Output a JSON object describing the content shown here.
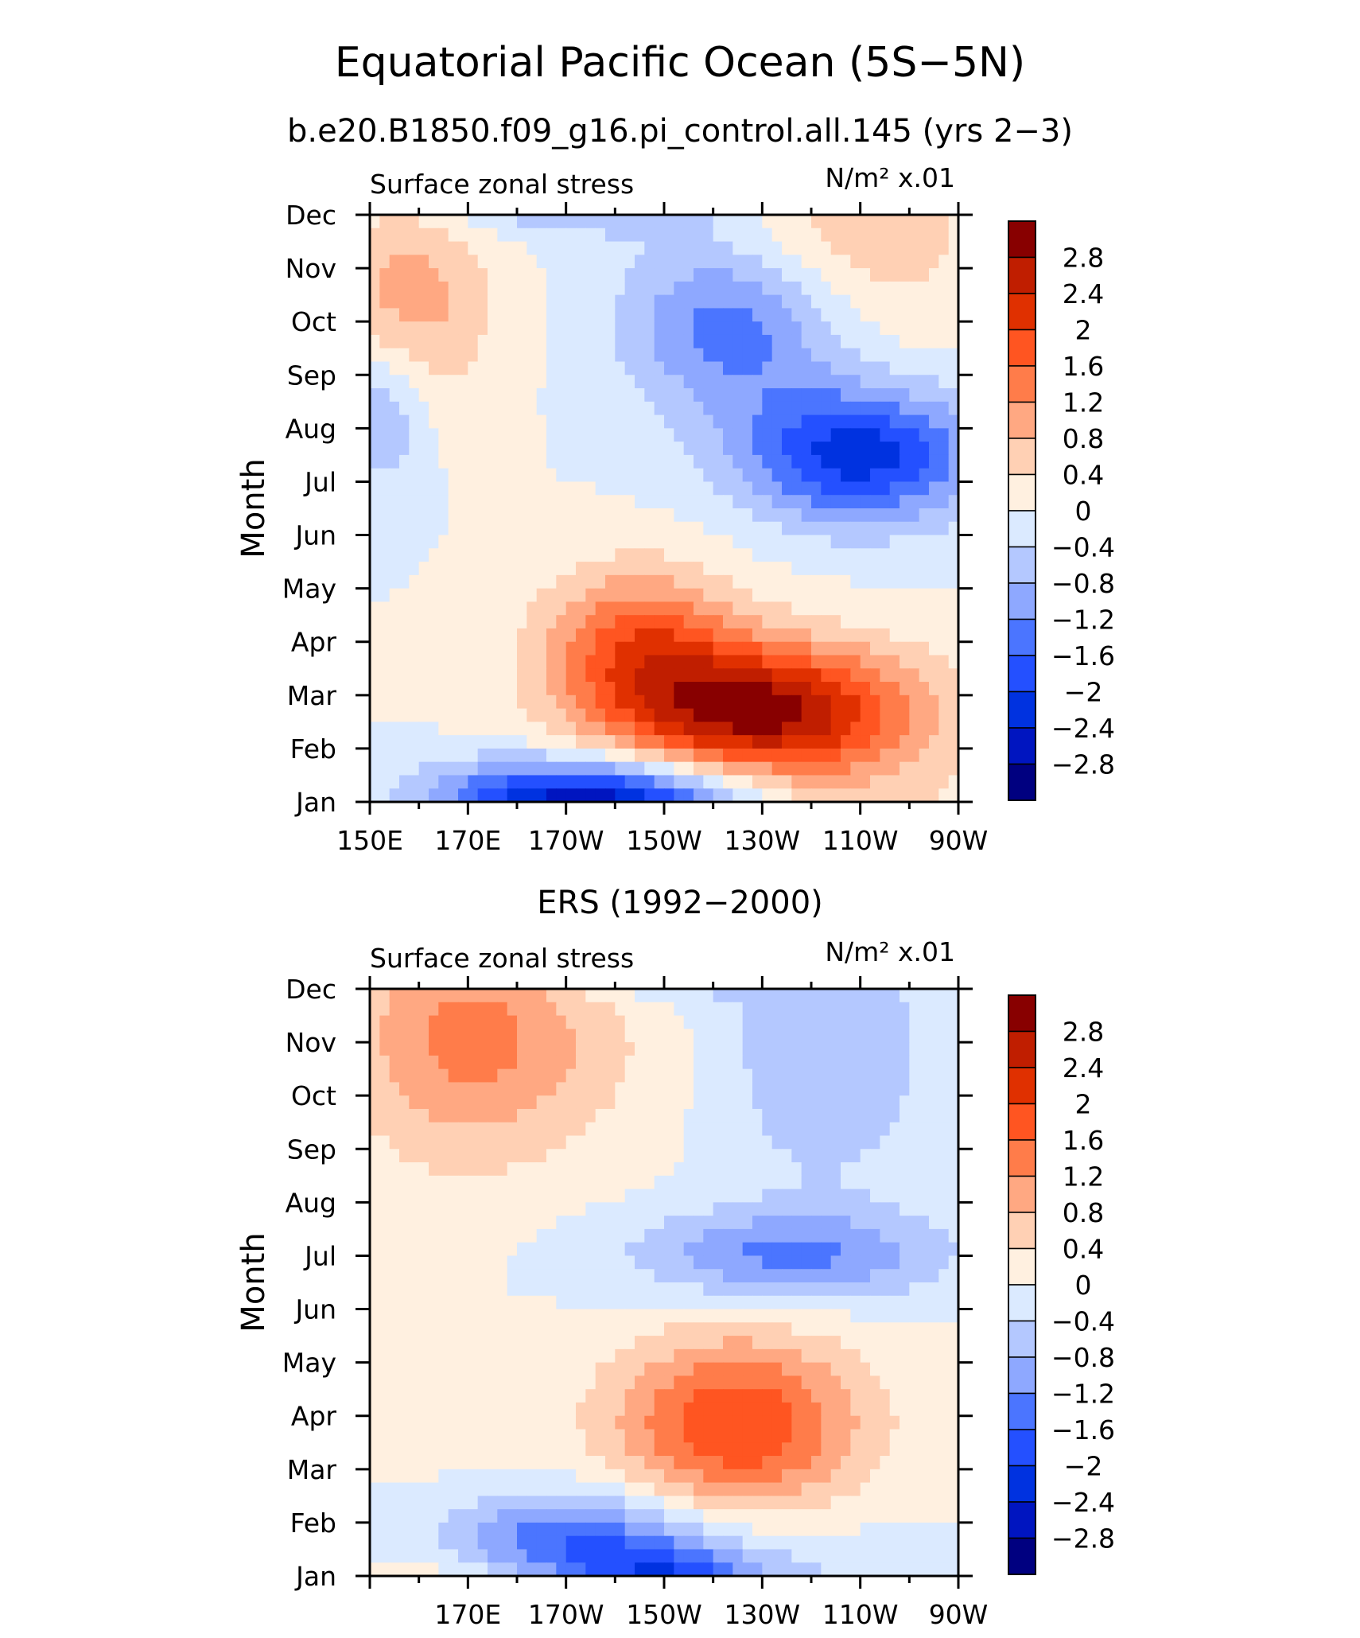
{
  "title": "Equatorial Pacific Ocean (5S−5N)",
  "chart_data": [
    {
      "type": "heatmap",
      "title": "b.e20.B1850.f09_g16.pi_control.all.145 (yrs 2−3)",
      "left_label": "Surface zonal stress",
      "units_label": "N/m² x.01",
      "xlabel": "",
      "ylabel": "Month",
      "x_range": [
        150,
        270
      ],
      "x_ticks": [
        {
          "value": 150,
          "label": "150E"
        },
        {
          "value": 170,
          "label": "170E"
        },
        {
          "value": 190,
          "label": "170W"
        },
        {
          "value": 210,
          "label": "150W"
        },
        {
          "value": 230,
          "label": "130W"
        },
        {
          "value": 250,
          "label": "110W"
        },
        {
          "value": 270,
          "label": "90W"
        }
      ],
      "y_ticks": [
        "Jan",
        "Feb",
        "Mar",
        "Apr",
        "May",
        "Jun",
        "Jul",
        "Aug",
        "Sep",
        "Oct",
        "Nov",
        "Dec"
      ],
      "levels": [
        -2.8,
        -2.4,
        -2,
        -1.6,
        -1.2,
        -0.8,
        -0.4,
        0,
        0.4,
        0.8,
        1.2,
        1.6,
        2,
        2.4,
        2.8
      ],
      "colorbar_labels": [
        "2.8",
        "2.4",
        "2",
        "1.6",
        "1.2",
        "0.8",
        "0.4",
        "0",
        "−0.4",
        "−0.8",
        "−1.2",
        "−1.6",
        "−2",
        "−2.4",
        "−2.8"
      ],
      "colors": [
        "#000080",
        "#0015c0",
        "#0032e0",
        "#2450ff",
        "#4b75ff",
        "#8ea8ff",
        "#b4c8ff",
        "#dbeaff",
        "#fff0e0",
        "#ffd0b4",
        "#ffa882",
        "#ff7c4a",
        "#ff5521",
        "#e03000",
        "#c01e00",
        "#880000"
      ],
      "features": [
        {
          "lon": 230,
          "month": 1.7,
          "value": 2.9,
          "sx": 22,
          "sy": 0.9
        },
        {
          "lon": 205,
          "month": 3.0,
          "value": 1.6,
          "sx": 14,
          "sy": 1.0
        },
        {
          "lon": 250,
          "month": 6.5,
          "value": -2.2,
          "sx": 17,
          "sy": 0.9
        },
        {
          "lon": 225,
          "month": 9.0,
          "value": -1.6,
          "sx": 16,
          "sy": 1.2
        },
        {
          "lon": 195,
          "month": 11.8,
          "value": -2.0,
          "sx": 22,
          "sy": 0.6
        },
        {
          "lon": 158,
          "month": 9.4,
          "value": 1.0,
          "sx": 12,
          "sy": 1.4
        },
        {
          "lon": 245,
          "month": 10.5,
          "value": 0.8,
          "sx": 20,
          "sy": 1.5
        },
        {
          "lon": 153,
          "month": 7.3,
          "value": -0.9,
          "sx": 6,
          "sy": 1.0
        },
        {
          "lon": 195,
          "month": 0.2,
          "value": -1.0,
          "sx": 25,
          "sy": 0.5
        }
      ]
    },
    {
      "type": "heatmap",
      "title": "ERS (1992−2000)",
      "left_label": "Surface zonal stress",
      "units_label": "N/m² x.01",
      "xlabel": "",
      "ylabel": "Month",
      "x_range": [
        150,
        270
      ],
      "x_ticks": [
        {
          "value": 170,
          "label": "170E"
        },
        {
          "value": 190,
          "label": "170W"
        },
        {
          "value": 210,
          "label": "150W"
        },
        {
          "value": 230,
          "label": "130W"
        },
        {
          "value": 250,
          "label": "110W"
        },
        {
          "value": 270,
          "label": "90W"
        }
      ],
      "y_ticks": [
        "Jan",
        "Feb",
        "Mar",
        "Apr",
        "May",
        "Jun",
        "Jul",
        "Aug",
        "Sep",
        "Oct",
        "Nov",
        "Dec"
      ],
      "levels": [
        -2.8,
        -2.4,
        -2,
        -1.6,
        -1.2,
        -0.8,
        -0.4,
        0,
        0.4,
        0.8,
        1.2,
        1.6,
        2,
        2.4,
        2.8
      ],
      "colorbar_labels": [
        "2.8",
        "2.4",
        "2",
        "1.6",
        "1.2",
        "0.8",
        "0.4",
        "0",
        "−0.4",
        "−0.8",
        "−1.2",
        "−1.6",
        "−2",
        "−2.4",
        "−2.8"
      ],
      "colors": [
        "#000080",
        "#0015c0",
        "#0032e0",
        "#2450ff",
        "#4b75ff",
        "#8ea8ff",
        "#b4c8ff",
        "#dbeaff",
        "#fff0e0",
        "#ffd0b4",
        "#ffa882",
        "#ff7c4a",
        "#ff5521",
        "#e03000",
        "#c01e00",
        "#880000"
      ],
      "features": [
        {
          "lon": 225,
          "month": 2.8,
          "value": 2.0,
          "sx": 18,
          "sy": 1.2
        },
        {
          "lon": 190,
          "month": 0.6,
          "value": -1.8,
          "sx": 22,
          "sy": 0.7
        },
        {
          "lon": 235,
          "month": 6.0,
          "value": -1.3,
          "sx": 22,
          "sy": 0.6
        },
        {
          "lon": 212,
          "month": 11.8,
          "value": -1.6,
          "sx": 13,
          "sy": 0.5
        },
        {
          "lon": 243,
          "month": 9.8,
          "value": -0.8,
          "sx": 15,
          "sy": 1.8
        },
        {
          "lon": 178,
          "month": 10.0,
          "value": 0.9,
          "sx": 20,
          "sy": 1.5
        },
        {
          "lon": 165,
          "month": 10.5,
          "value": 0.6,
          "sx": 14,
          "sy": 2.0
        }
      ]
    }
  ]
}
